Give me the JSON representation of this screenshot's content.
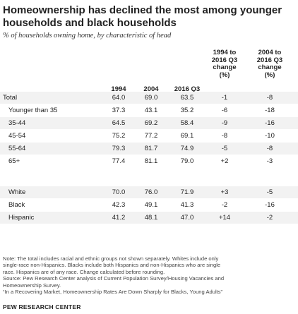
{
  "title_line1": "Homeownership has declined the most among younger",
  "title_line2": "households and black households",
  "subtitle": "% of households owning home, by characteristic of head",
  "chart_data": {
    "type": "table",
    "columns": [
      "1994",
      "2004",
      "2016 Q3",
      "1994 to 2016 Q3 change (%)",
      "2004 to 2016 Q3 change (%)"
    ],
    "column_header_lines": {
      "change1994": [
        "1994 to",
        "2016 Q3",
        "change",
        "(%)"
      ],
      "change2004": [
        "2004 to",
        "2016 Q3",
        "change",
        "(%)"
      ]
    },
    "rows": [
      {
        "label": "Total",
        "values": [
          "64.0",
          "69.0",
          "63.5",
          "-1",
          "-8"
        ]
      },
      {
        "label": "Younger than 35",
        "values": [
          "37.3",
          "43.1",
          "35.2",
          "-6",
          "-18"
        ]
      },
      {
        "label": "35-44",
        "values": [
          "64.5",
          "69.2",
          "58.4",
          "-9",
          "-16"
        ]
      },
      {
        "label": "45-54",
        "values": [
          "75.2",
          "77.2",
          "69.1",
          "-8",
          "-10"
        ]
      },
      {
        "label": "55-64",
        "values": [
          "79.3",
          "81.7",
          "74.9",
          "-5",
          "-8"
        ]
      },
      {
        "label": "65+",
        "values": [
          "77.4",
          "81.1",
          "79.0",
          "+2",
          "-3"
        ]
      },
      {
        "label": "White",
        "values": [
          "70.0",
          "76.0",
          "71.9",
          "+3",
          "-5"
        ]
      },
      {
        "label": "Black",
        "values": [
          "42.3",
          "49.1",
          "41.3",
          "-2",
          "-16"
        ]
      },
      {
        "label": "Hispanic",
        "values": [
          "41.2",
          "48.1",
          "47.0",
          "+14",
          "-2"
        ]
      }
    ]
  },
  "notes": [
    "Note: The total includes racial and ethnic groups not shown separately. Whites include only",
    "single-race non-Hispanics. Blacks include both Hispanics and non-Hispanics who are single",
    "race. Hispanics are of any race. Change calculated before rounding.",
    "Source: Pew Research Center analysis of Current Population Survey/Housing Vacancies and",
    "Homeownership Survey.",
    "“In a Recovering Market, Homeownership Rates Are Down Sharply for Blacks, Young Adults”"
  ],
  "source_org": "PEW RESEARCH CENTER"
}
